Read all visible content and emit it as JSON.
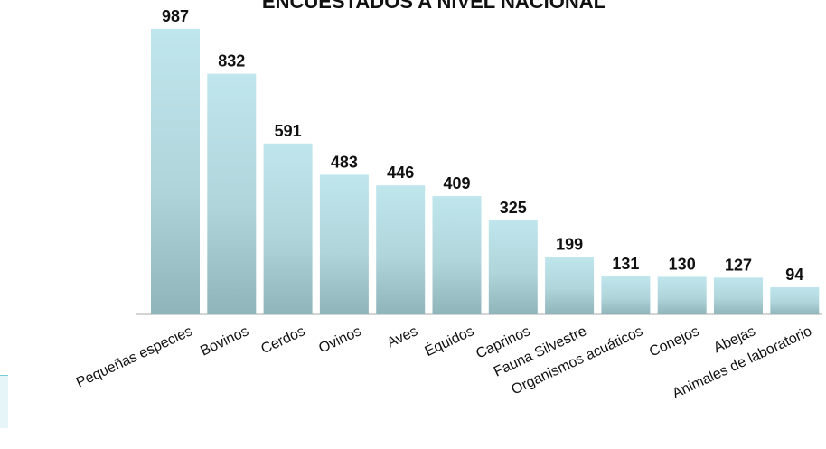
{
  "chart_data": {
    "type": "bar",
    "title": "ENCUESTADOS A NIVEL NACIONAL",
    "categories": [
      "Pequeñas especies",
      "Bovinos",
      "Cerdos",
      "Ovinos",
      "Aves",
      "Équidos",
      "Caprinos",
      "Fauna Silvestre",
      "Organismos acuáticos",
      "Conejos",
      "Abejas",
      "Animales de laboratorio"
    ],
    "values": [
      987,
      832,
      591,
      483,
      446,
      409,
      325,
      199,
      131,
      130,
      127,
      94
    ],
    "ylim": [
      0,
      987
    ],
    "grid": false,
    "legend": "none",
    "colors": {
      "bar_top": "#bfe6ec",
      "bar_bottom": "#8fb5bb",
      "baseline": "#aaaaaa",
      "text": "#111111"
    }
  }
}
